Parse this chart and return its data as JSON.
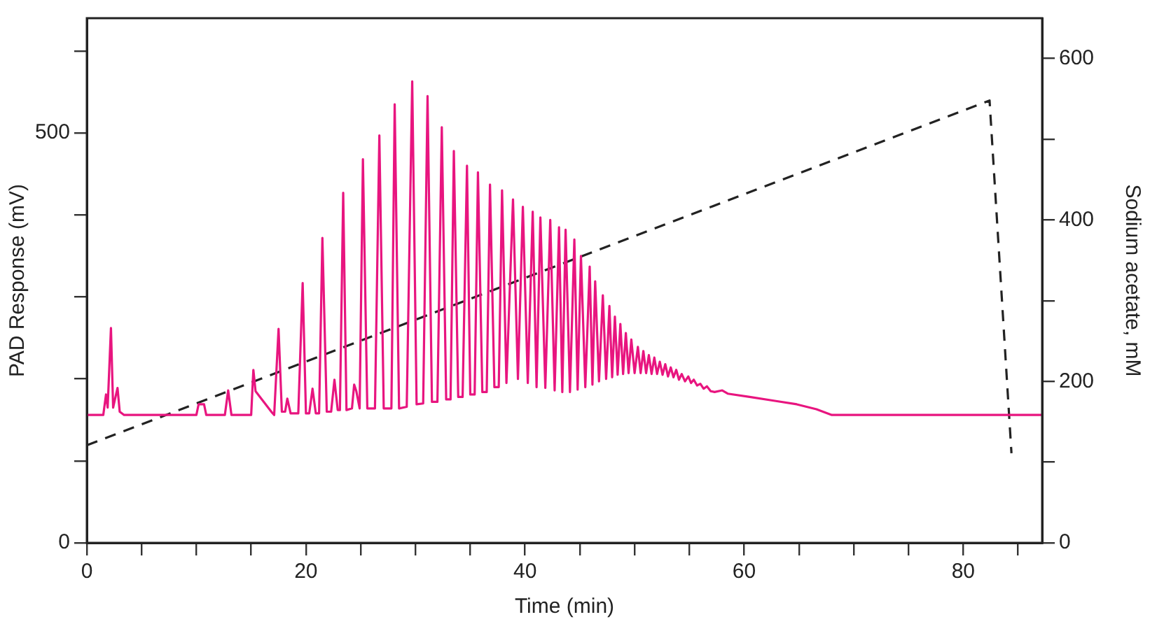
{
  "chart_data": {
    "type": "line",
    "xlabel": "Time (min)",
    "ylabel": "PAD Response (mV)",
    "y2label": "Sodium acetate, mM",
    "xlim": [
      0,
      87.2
    ],
    "ylim": [
      0,
      640
    ],
    "y2lim": [
      0,
      650
    ],
    "xticks": [
      0,
      {
        "value": 5,
        "label": null
      },
      20,
      {
        "value": 10,
        "label": null
      },
      {
        "value": 15,
        "label": null
      },
      {
        "value": 25,
        "label": null
      },
      {
        "value": 30,
        "label": null
      },
      {
        "value": 35,
        "label": null
      },
      40,
      {
        "value": 45,
        "label": null
      },
      {
        "value": 50,
        "label": null
      },
      {
        "value": 55,
        "label": null
      },
      60,
      {
        "value": 65,
        "label": null
      },
      {
        "value": 70,
        "label": null
      },
      {
        "value": 75,
        "label": null
      },
      80,
      {
        "value": 85,
        "label": null
      }
    ],
    "yticks": [
      0,
      {
        "value": 100,
        "label": null
      },
      {
        "value": 200,
        "label": null
      },
      {
        "value": 300,
        "label": null
      },
      {
        "value": 400,
        "label": null
      },
      500,
      {
        "value": 600,
        "label": null
      }
    ],
    "y2ticks": [
      0,
      {
        "value": 100,
        "label": null
      },
      200,
      {
        "value": 300,
        "label": null
      },
      400,
      {
        "value": 500,
        "label": null
      },
      600
    ],
    "grid": false,
    "legend": false,
    "marker": "none",
    "series": [
      {
        "type": "line",
        "color": "#e8157f",
        "line_style": "solid",
        "x": [
          0,
          1.5,
          1.75,
          1.9,
          2.2,
          2.4,
          2.8,
          3.0,
          3.4,
          10.0,
          10.2,
          10.7,
          10.9,
          12.6,
          12.9,
          13.2,
          15.0,
          15.2,
          15.4,
          16.9,
          17.1,
          17.5,
          17.8,
          18.1,
          18.3,
          18.6,
          19.3,
          19.7,
          20.0,
          20.3,
          20.6,
          20.9,
          21.2,
          21.5,
          21.9,
          22.3,
          22.6,
          22.9,
          23.1,
          23.4,
          23.7,
          24.2,
          24.4,
          24.6,
          24.9,
          25.2,
          25.6,
          26.3,
          26.7,
          27.1,
          27.8,
          28.1,
          28.5,
          29.2,
          29.7,
          30.1,
          30.7,
          31.1,
          31.5,
          32.0,
          32.4,
          32.8,
          33.2,
          33.5,
          33.9,
          34.3,
          34.7,
          35.0,
          35.4,
          35.7,
          36.1,
          36.5,
          36.8,
          37.2,
          37.6,
          37.9,
          38.3,
          38.9,
          39.35,
          39.8,
          40.25,
          40.7,
          41.05,
          41.4,
          41.85,
          42.3,
          42.7,
          43.1,
          43.4,
          43.7,
          44.1,
          44.5,
          44.8,
          45.1,
          45.5,
          45.9,
          46.15,
          46.4,
          46.75,
          47.1,
          47.4,
          47.7,
          47.95,
          48.2,
          48.45,
          48.7,
          48.95,
          49.2,
          49.45,
          49.7,
          50.0,
          50.3,
          50.55,
          50.8,
          51.05,
          51.3,
          51.55,
          51.8,
          52.05,
          52.3,
          52.55,
          52.8,
          53.05,
          53.3,
          53.55,
          53.8,
          54.05,
          54.3,
          54.6,
          54.9,
          55.15,
          55.4,
          55.7,
          56.0,
          56.3,
          56.6,
          56.95,
          57.3,
          58.0,
          58.5,
          60.5,
          62.9,
          64.8,
          66.6,
          68.0,
          87.2
        ],
        "values": [
          156,
          156,
          181,
          165,
          262,
          165,
          189,
          160,
          156,
          156,
          169,
          169,
          156,
          156,
          186,
          156,
          156,
          211,
          185,
          159,
          156,
          261,
          160,
          160,
          176,
          158,
          158,
          317,
          158,
          158,
          188,
          158,
          158,
          372,
          160,
          160,
          199,
          162,
          162,
          427,
          162,
          164,
          193,
          185,
          164,
          468,
          164,
          164,
          497,
          164,
          164,
          535,
          164,
          166,
          563,
          169,
          170,
          545,
          172,
          172,
          507,
          175,
          175,
          478,
          178,
          178,
          460,
          181,
          181,
          452,
          184,
          184,
          437,
          190,
          190,
          430,
          195,
          419,
          200,
          410,
          195,
          404,
          190,
          397,
          189,
          394,
          186,
          385,
          184,
          382,
          184,
          370,
          187,
          350,
          190,
          337,
          193,
          319,
          197,
          302,
          200,
          289,
          202,
          276,
          205,
          267,
          206,
          256,
          207,
          248,
          207,
          239,
          207,
          234,
          207,
          229,
          206,
          226,
          206,
          221,
          205,
          218,
          203,
          214,
          202,
          211,
          199,
          206,
          197,
          203,
          195,
          199,
          192,
          194,
          188,
          191,
          185,
          184,
          186,
          182,
          178,
          173,
          169,
          163,
          156,
          156
        ]
      },
      {
        "type": "line",
        "color": "#222222",
        "line_style": "dashed",
        "axis": "y2",
        "x": [
          0,
          82.4,
          84.4
        ],
        "values": [
          121,
          548,
          111
        ]
      }
    ]
  }
}
